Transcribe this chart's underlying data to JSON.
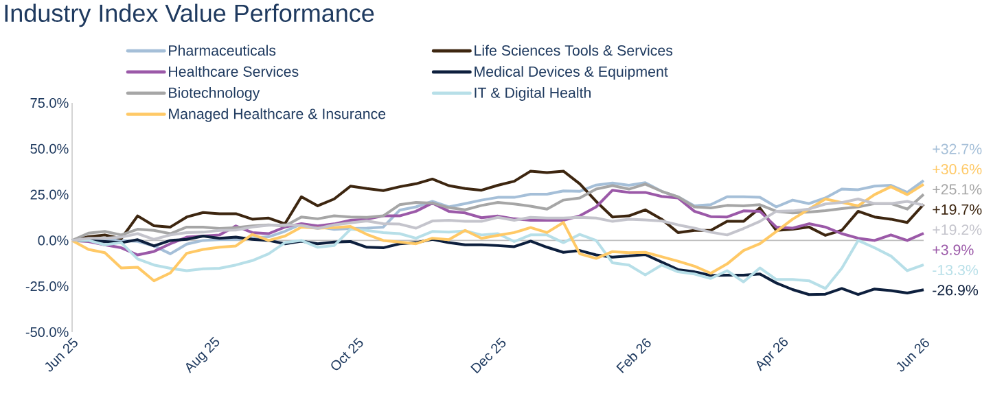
{
  "chart_data": {
    "type": "line",
    "title": "Industry Index Value Performance",
    "x": [
      "2025-06-27",
      "2025-07-04",
      "2025-07-11",
      "2025-07-18",
      "2025-07-25",
      "2025-08-01",
      "2025-08-08",
      "2025-08-15",
      "2025-08-22",
      "2025-08-29",
      "2025-09-05",
      "2025-09-12",
      "2025-09-19",
      "2025-09-26",
      "2025-10-03",
      "2025-10-10",
      "2025-10-17",
      "2025-10-24",
      "2025-10-31",
      "2025-11-07",
      "2025-11-14",
      "2025-11-21",
      "2025-11-28",
      "2025-12-05",
      "2025-12-12",
      "2025-12-19",
      "2025-12-26",
      "2026-01-02",
      "2026-01-09",
      "2026-01-16",
      "2026-01-23",
      "2026-01-30",
      "2026-02-06",
      "2026-02-13",
      "2026-02-20",
      "2026-02-27",
      "2026-03-06",
      "2026-03-13",
      "2026-03-20",
      "2026-03-27",
      "2026-04-03",
      "2026-04-10",
      "2026-04-17",
      "2026-04-24",
      "2026-05-01",
      "2026-05-08",
      "2026-05-15",
      "2026-05-22",
      "2026-05-29",
      "2026-06-05",
      "2026-06-12",
      "2026-06-19",
      "2026-06-26"
    ],
    "xlim": [
      "2025-06-27",
      "2026-06-26"
    ],
    "xticks": [
      {
        "value": "2025-06-27",
        "label": "Jun 25"
      },
      {
        "value": "2025-08-27",
        "label": "Aug 25"
      },
      {
        "value": "2025-10-27",
        "label": "Oct 25"
      },
      {
        "value": "2025-12-27",
        "label": "Dec 25"
      },
      {
        "value": "2026-02-27",
        "label": "Feb 26"
      },
      {
        "value": "2026-04-27",
        "label": "Apr 26"
      },
      {
        "value": "2026-06-26",
        "label": "Jun 26"
      }
    ],
    "ylim": [
      -50,
      75
    ],
    "yticks": [
      {
        "value": -50,
        "label": "-50.0%"
      },
      {
        "value": -25,
        "label": "-25.0%"
      },
      {
        "value": 0,
        "label": "0.0%"
      },
      {
        "value": 25,
        "label": "25.0%"
      },
      {
        "value": 50,
        "label": "50.0%"
      },
      {
        "value": 75,
        "label": "75.0%"
      }
    ],
    "legend": "top",
    "marker": "none",
    "line_style": "solid",
    "ref_lines": [
      {
        "axis": "y",
        "value": 0,
        "color": "#bfbfbf"
      }
    ],
    "series": [
      {
        "name": "Pharmaceuticals",
        "color": "#a5bfd8",
        "values": [
          0,
          0.5,
          1,
          0,
          -0.5,
          -3,
          -7.3,
          -2,
          0,
          0.5,
          0.5,
          1.5,
          2,
          5,
          9,
          7.5,
          6,
          6.5,
          6.7,
          7.3,
          16.5,
          18.3,
          21.3,
          18.3,
          20.1,
          22,
          23.5,
          23.5,
          25.2,
          25.2,
          27,
          26.8,
          30.2,
          31.3,
          30.1,
          31.5,
          26.8,
          23.8,
          18.9,
          19.5,
          23.8,
          23.8,
          23.5,
          18.3,
          22,
          20.1,
          23.2,
          28,
          27.7,
          29.6,
          30.1,
          26.2,
          32.7
        ],
        "value_labels": [
          null,
          null,
          null,
          null,
          null,
          null,
          null,
          null,
          null,
          null,
          null,
          null,
          null,
          null,
          null,
          null,
          null,
          null,
          null,
          null,
          null,
          null,
          null,
          null,
          null,
          null,
          null,
          null,
          null,
          null,
          null,
          null,
          null,
          null,
          null,
          null,
          null,
          null,
          null,
          null,
          null,
          null,
          null,
          null,
          null,
          null,
          null,
          null,
          null,
          null,
          null,
          null,
          "+32.7%"
        ]
      },
      {
        "name": "Life Sciences Tools & Services",
        "color": "#3d2610",
        "values": [
          0,
          2,
          3,
          1,
          13.4,
          8,
          7.3,
          12.8,
          15.2,
          14.6,
          14.6,
          11.6,
          12.2,
          9.1,
          23.8,
          18.9,
          22.6,
          29.6,
          28.3,
          27.2,
          29.3,
          30.9,
          33.5,
          29.9,
          28.3,
          27.4,
          30.1,
          32.3,
          37.8,
          37,
          37.8,
          30.9,
          21.3,
          12.8,
          13.4,
          16.7,
          11.6,
          4.3,
          5.5,
          5.5,
          10.4,
          10.4,
          17.7,
          5.5,
          6.1,
          7.3,
          2.8,
          5.5,
          15.9,
          12.8,
          11.6,
          9.8,
          19.7
        ],
        "value_labels": [
          null,
          null,
          null,
          null,
          null,
          null,
          null,
          null,
          null,
          null,
          null,
          null,
          null,
          null,
          null,
          null,
          null,
          null,
          null,
          null,
          null,
          null,
          null,
          null,
          null,
          null,
          null,
          null,
          null,
          null,
          null,
          null,
          null,
          null,
          null,
          null,
          null,
          null,
          null,
          null,
          null,
          null,
          null,
          null,
          null,
          null,
          null,
          null,
          null,
          null,
          null,
          null,
          "+19.7%"
        ]
      },
      {
        "name": "Healthcare Services",
        "color": "#9b59a8",
        "values": [
          0,
          -0.6,
          -2.4,
          -4,
          -7.9,
          -6,
          -1.8,
          1.8,
          2.4,
          3,
          7.9,
          4.3,
          3.7,
          7.3,
          9.1,
          7.9,
          9,
          11,
          11.6,
          13.4,
          13.4,
          15.9,
          20.4,
          15.9,
          15,
          12.4,
          13.3,
          11.8,
          11,
          11,
          11,
          13.4,
          18.3,
          27.4,
          26.2,
          26.2,
          24,
          23.2,
          15.9,
          13,
          12.8,
          16.1,
          15.9,
          7.3,
          6.7,
          9.1,
          7.3,
          3.7,
          1.2,
          0,
          3,
          0,
          3.9
        ],
        "value_labels": [
          null,
          null,
          null,
          null,
          null,
          null,
          null,
          null,
          null,
          null,
          null,
          null,
          null,
          null,
          null,
          null,
          null,
          null,
          null,
          null,
          null,
          null,
          null,
          null,
          null,
          null,
          null,
          null,
          null,
          null,
          null,
          null,
          null,
          null,
          null,
          null,
          null,
          null,
          null,
          null,
          null,
          null,
          null,
          null,
          null,
          null,
          null,
          null,
          null,
          null,
          null,
          null,
          "+3.9%"
        ]
      },
      {
        "name": "Medical Devices & Equipment",
        "color": "#0d1f3d",
        "values": [
          0,
          0,
          -0.6,
          -1.2,
          0.4,
          -3,
          0,
          0.6,
          2.4,
          1.2,
          1.8,
          0.6,
          0,
          -1.8,
          -0.4,
          -1.8,
          -0.9,
          -0.6,
          -3.7,
          -4,
          -1.8,
          -1.2,
          0.6,
          -1.2,
          -2.4,
          -2.4,
          -2.8,
          -3.4,
          -0.4,
          -3.7,
          -6.5,
          -5.5,
          -7.9,
          -9.1,
          -8.5,
          -7.7,
          -11.8,
          -15.9,
          -17.1,
          -19.1,
          -18.9,
          -18.9,
          -18.3,
          -23.2,
          -26.8,
          -29.5,
          -29.3,
          -26.2,
          -29.5,
          -26.5,
          -27.4,
          -28.7,
          -26.9
        ],
        "value_labels": [
          null,
          null,
          null,
          null,
          null,
          null,
          null,
          null,
          null,
          null,
          null,
          null,
          null,
          null,
          null,
          null,
          null,
          null,
          null,
          null,
          null,
          null,
          null,
          null,
          null,
          null,
          null,
          null,
          null,
          null,
          null,
          null,
          null,
          null,
          null,
          null,
          null,
          null,
          null,
          null,
          null,
          null,
          null,
          null,
          null,
          null,
          null,
          null,
          null,
          null,
          null,
          null,
          "-26.9%"
        ]
      },
      {
        "name": "Biotechnology",
        "color": "#a6a6a6",
        "values": [
          0,
          4,
          4.9,
          3,
          6.1,
          5.5,
          3.7,
          7.3,
          7.3,
          6.5,
          7,
          7.9,
          8.5,
          7.9,
          12.8,
          11.8,
          13.4,
          12.8,
          12.6,
          13.4,
          19.5,
          20.7,
          20.4,
          17.9,
          16.7,
          19.1,
          20.7,
          19.9,
          18.7,
          17.1,
          22,
          23.2,
          28,
          29.9,
          28,
          30.7,
          26.8,
          23.8,
          18.3,
          17.7,
          19.1,
          18.9,
          19.5,
          15.9,
          15,
          15.5,
          16.2,
          17.4,
          18.3,
          20.1,
          20.1,
          17.1,
          25.1
        ],
        "value_labels": [
          null,
          null,
          null,
          null,
          null,
          null,
          null,
          null,
          null,
          null,
          null,
          null,
          null,
          null,
          null,
          null,
          null,
          null,
          null,
          null,
          null,
          null,
          null,
          null,
          null,
          null,
          null,
          null,
          null,
          null,
          null,
          null,
          null,
          null,
          null,
          null,
          null,
          null,
          null,
          null,
          null,
          null,
          null,
          null,
          null,
          null,
          null,
          null,
          null,
          null,
          null,
          null,
          "+25.1%"
        ]
      },
      {
        "name": "IT & Digital Health",
        "color": "#b7dfe8",
        "values": [
          0,
          0,
          -2.4,
          -1.2,
          -10.1,
          -13.4,
          -15.2,
          -16.5,
          -15.5,
          -15.2,
          -13.4,
          -11,
          -7.3,
          -1.2,
          0,
          -3.7,
          -2.8,
          6.1,
          5.5,
          4.3,
          3.7,
          1.2,
          4.9,
          4.5,
          5.2,
          3,
          3.7,
          -0.6,
          3,
          3,
          -1.2,
          3.3,
          0,
          -12.2,
          -13.4,
          -18.8,
          -13.4,
          -17.1,
          -18.3,
          -20.7,
          -16.5,
          -22.6,
          -15,
          -21.3,
          -21.3,
          -22,
          -26.2,
          -15.2,
          0,
          -4,
          -8.5,
          -16.5,
          -13.3
        ],
        "value_labels": [
          null,
          null,
          null,
          null,
          null,
          null,
          null,
          null,
          null,
          null,
          null,
          null,
          null,
          null,
          null,
          null,
          null,
          null,
          null,
          null,
          null,
          null,
          null,
          null,
          null,
          null,
          null,
          null,
          null,
          null,
          null,
          null,
          null,
          null,
          null,
          null,
          null,
          null,
          null,
          null,
          null,
          null,
          null,
          null,
          null,
          null,
          null,
          null,
          null,
          null,
          null,
          null,
          "-13.3%"
        ]
      },
      {
        "name": "Managed Healthcare & Insurance",
        "color": "#ffc966",
        "values": [
          0,
          -4.9,
          -6.7,
          -15,
          -14.6,
          -22,
          -17.7,
          -7,
          -4.9,
          -3.7,
          -3,
          3.3,
          0,
          2.4,
          7.3,
          6.7,
          7,
          7.6,
          3.3,
          0,
          -0.9,
          -1.8,
          1.2,
          0.4,
          5.5,
          1.2,
          2.8,
          4.3,
          7,
          4.3,
          9.8,
          -7.3,
          -9.8,
          -6.1,
          -6.7,
          -6.5,
          -8.9,
          -11.3,
          -14,
          -17.9,
          -12.8,
          -5.5,
          -1.8,
          4.9,
          11.6,
          17.1,
          22.6,
          20.7,
          18.9,
          25,
          29.3,
          25,
          30.6
        ],
        "value_labels": [
          null,
          null,
          null,
          null,
          null,
          null,
          null,
          null,
          null,
          null,
          null,
          null,
          null,
          null,
          null,
          null,
          null,
          null,
          null,
          null,
          null,
          null,
          null,
          null,
          null,
          null,
          null,
          null,
          null,
          null,
          null,
          null,
          null,
          null,
          null,
          null,
          null,
          null,
          null,
          null,
          null,
          null,
          null,
          null,
          null,
          null,
          null,
          null,
          null,
          null,
          null,
          null,
          "+30.6%"
        ]
      },
      {
        "color": "#c4c4cc",
        "values": [
          0,
          1.2,
          1.2,
          1.8,
          3.7,
          0.6,
          3,
          4.3,
          4.5,
          5.5,
          5.7,
          7.3,
          8.3,
          8.5,
          8.2,
          6.5,
          8.5,
          9.6,
          10.6,
          9.1,
          8.9,
          6.7,
          10.6,
          11,
          10.4,
          10.4,
          12.6,
          11,
          12.6,
          12.2,
          12.2,
          12.6,
          12.2,
          10.4,
          11.6,
          11.2,
          10.6,
          8.5,
          6.7,
          4.5,
          3,
          6.5,
          10.4,
          15.9,
          16.1,
          17.1,
          19.9,
          20.7,
          22.6,
          20.1,
          20.1,
          21.3,
          19.2
        ],
        "value_labels": [
          null,
          null,
          null,
          null,
          null,
          null,
          null,
          null,
          null,
          null,
          null,
          null,
          null,
          null,
          null,
          null,
          null,
          null,
          null,
          null,
          null,
          null,
          null,
          null,
          null,
          null,
          null,
          null,
          null,
          null,
          null,
          null,
          null,
          null,
          null,
          null,
          null,
          null,
          null,
          null,
          null,
          null,
          null,
          null,
          null,
          null,
          null,
          null,
          null,
          null,
          null,
          null,
          "+19.2%"
        ]
      }
    ]
  }
}
